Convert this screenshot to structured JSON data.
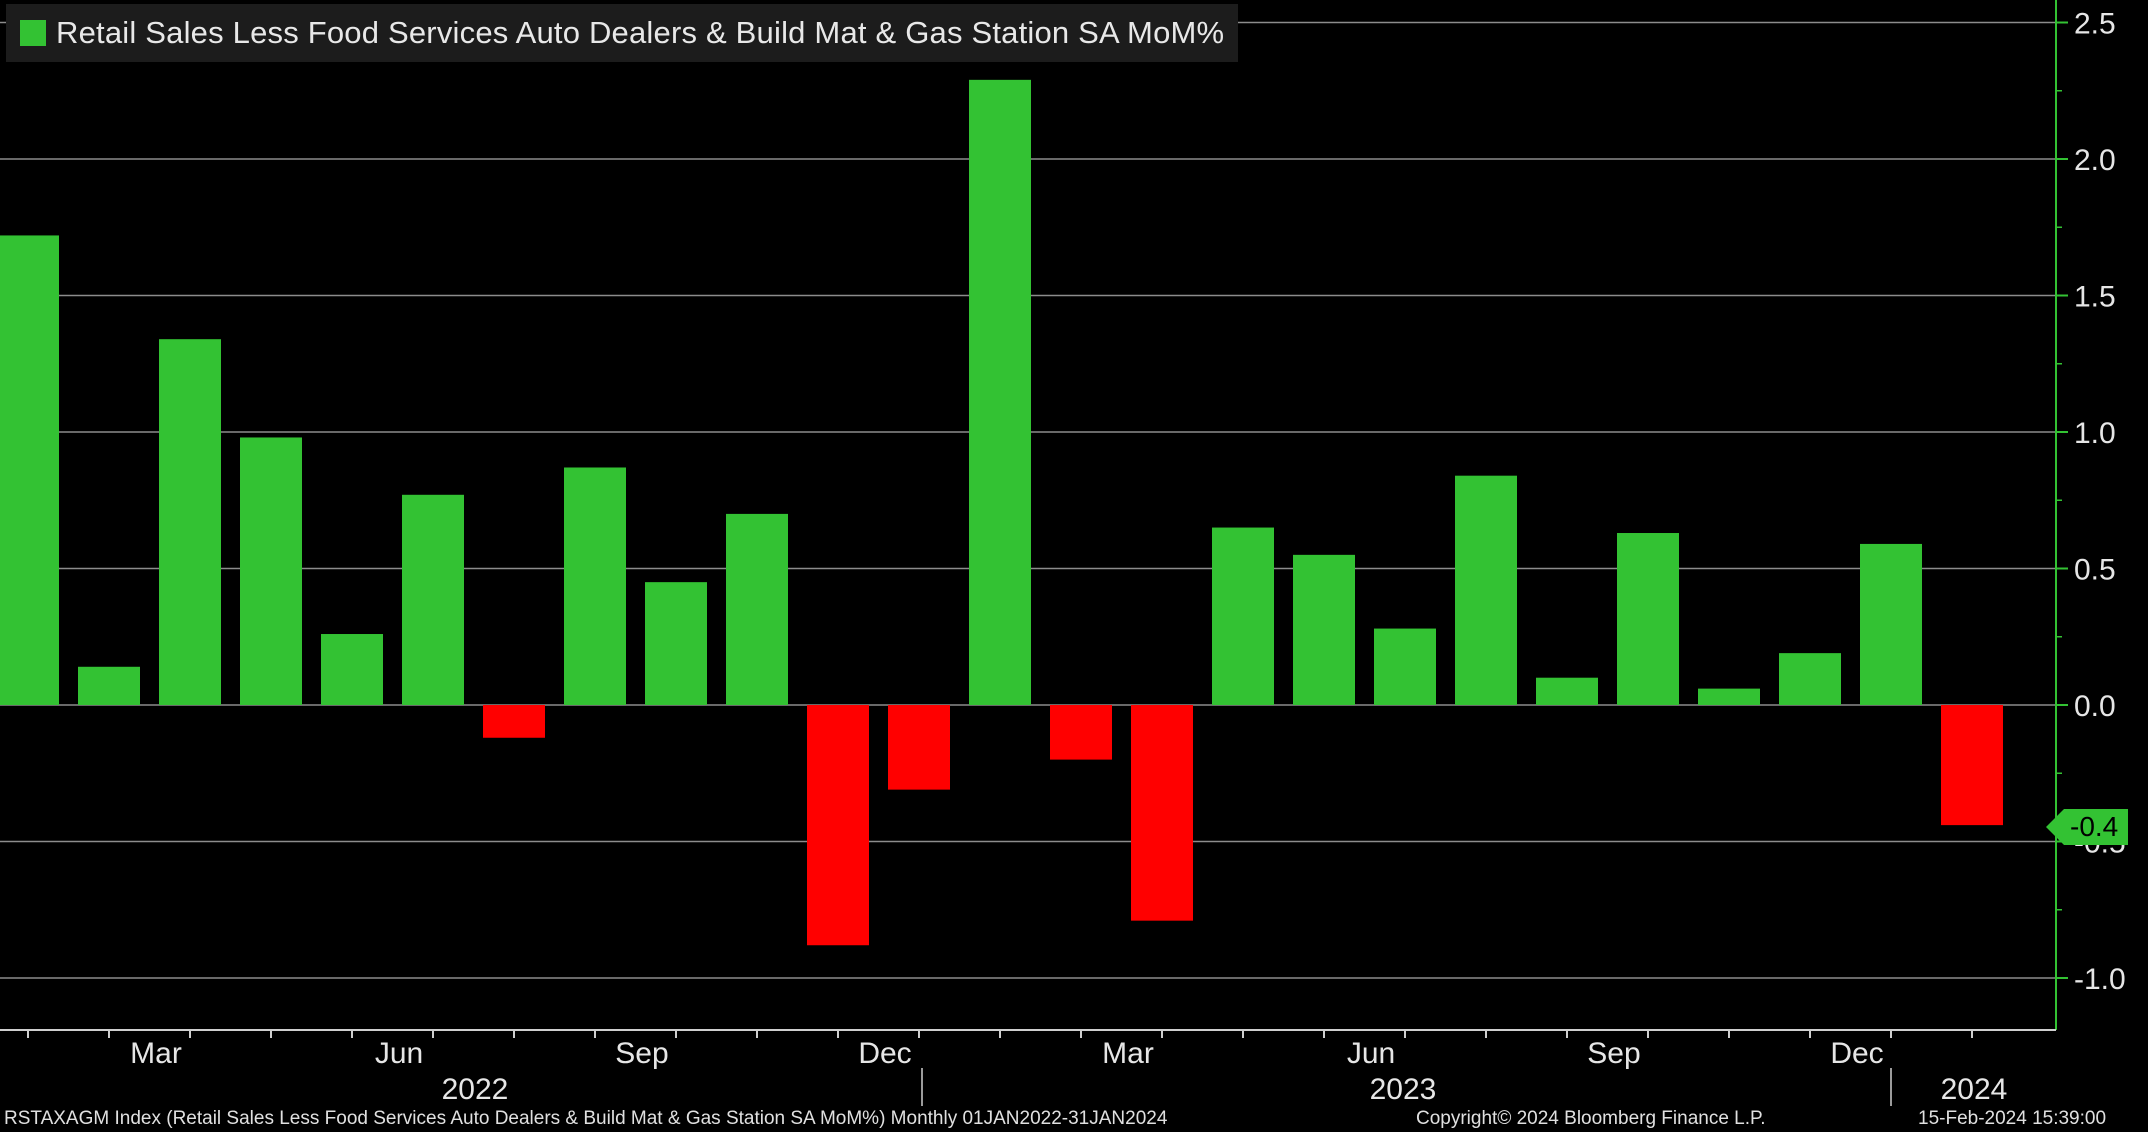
{
  "chart_data": {
    "type": "bar",
    "title": "Retail Sales Less Food Services Auto Dealers & Build Mat & Gas Station SA MoM%",
    "categories": [
      "2022-01",
      "2022-02",
      "2022-03",
      "2022-04",
      "2022-05",
      "2022-06",
      "2022-07",
      "2022-08",
      "2022-09",
      "2022-10",
      "2022-11",
      "2022-12",
      "2023-01",
      "2023-02",
      "2023-03",
      "2023-04",
      "2023-05",
      "2023-06",
      "2023-07",
      "2023-08",
      "2023-09",
      "2023-10",
      "2023-11",
      "2023-12",
      "2024-01"
    ],
    "series": [
      {
        "name": "Retail Sales Less Food Services Auto Dealers & Build Mat & Gas Station SA MoM%",
        "values": [
          1.72,
          0.14,
          1.34,
          0.98,
          0.26,
          0.77,
          -0.12,
          0.87,
          0.45,
          0.7,
          -0.88,
          -0.31,
          2.29,
          -0.2,
          -0.79,
          0.65,
          0.55,
          0.28,
          0.84,
          0.1,
          0.63,
          0.06,
          0.19,
          0.59,
          -0.44
        ]
      }
    ],
    "x_month_labels": [
      "Mar",
      "Jun",
      "Sep",
      "Dec",
      "Mar",
      "Jun",
      "Sep",
      "Dec"
    ],
    "x_year_labels": [
      "2022",
      "2023",
      "2024"
    ],
    "y_ticks": [
      "2.5",
      "2.0",
      "1.5",
      "1.0",
      "0.5",
      "0.0",
      "-0.5",
      "-1.0"
    ],
    "y_tick_values": [
      2.5,
      2.0,
      1.5,
      1.0,
      0.5,
      0.0,
      -0.5,
      -1.0
    ],
    "ylim": [
      -1.18,
      2.55
    ],
    "last_value_label": "-0.4",
    "grid": true,
    "legend_position": "top-left",
    "colors": {
      "positive": "#33c233",
      "negative": "#ff0000",
      "background": "#000000",
      "grid": "#8c8c8c",
      "axis": "#33c233",
      "legend_bg": "#1c1c1c"
    }
  },
  "footer": {
    "left": "RSTAXAGM Index (Retail Sales Less Food Services Auto Dealers & Build Mat & Gas Station SA MoM%)  Monthly 01JAN2022-31JAN2024",
    "center": "Copyright© 2024 Bloomberg Finance L.P.",
    "right": "15-Feb-2024 15:39:00"
  }
}
